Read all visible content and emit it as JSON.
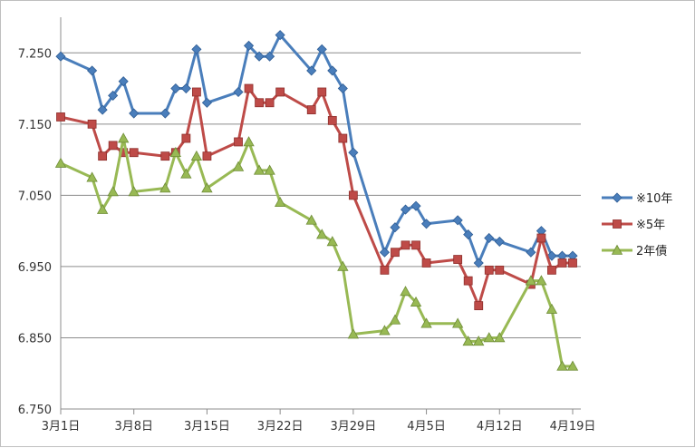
{
  "chart_data": {
    "type": "line",
    "title": "",
    "xlabel": "",
    "ylabel": "",
    "ylim": [
      6.75,
      7.3
    ],
    "y_ticks": [
      "7.250",
      "7.150",
      "7.050",
      "6.950",
      "6.850",
      "6.750"
    ],
    "x_ticks": [
      "3月1日",
      "3月8日",
      "3月15日",
      "3月22日",
      "3月29日",
      "4月5日",
      "4月12日",
      "4月19日"
    ],
    "grid": "horizontal",
    "legend_position": "right",
    "series": [
      {
        "name": "※10年",
        "color": "#4a7ebb",
        "marker": "diamond",
        "points": [
          [
            "2010-03-01",
            7.245
          ],
          [
            "2010-03-04",
            7.225
          ],
          [
            "2010-03-05",
            7.17
          ],
          [
            "2010-03-06",
            7.19
          ],
          [
            "2010-03-07",
            7.21
          ],
          [
            "2010-03-08",
            7.165
          ],
          [
            "2010-03-11",
            7.165
          ],
          [
            "2010-03-12",
            7.2
          ],
          [
            "2010-03-13",
            7.2
          ],
          [
            "2010-03-14",
            7.255
          ],
          [
            "2010-03-15",
            7.18
          ],
          [
            "2010-03-18",
            7.195
          ],
          [
            "2010-03-19",
            7.26
          ],
          [
            "2010-03-20",
            7.245
          ],
          [
            "2010-03-21",
            7.245
          ],
          [
            "2010-03-22",
            7.275
          ],
          [
            "2010-03-25",
            7.225
          ],
          [
            "2010-03-26",
            7.255
          ],
          [
            "2010-03-27",
            7.225
          ],
          [
            "2010-03-28",
            7.2
          ],
          [
            "2010-03-29",
            7.11
          ],
          [
            "2010-04-01",
            6.97
          ],
          [
            "2010-04-02",
            7.005
          ],
          [
            "2010-04-03",
            7.03
          ],
          [
            "2010-04-04",
            7.035
          ],
          [
            "2010-04-05",
            7.01
          ],
          [
            "2010-04-08",
            7.015
          ],
          [
            "2010-04-09",
            6.995
          ],
          [
            "2010-04-10",
            6.955
          ],
          [
            "2010-04-11",
            6.99
          ],
          [
            "2010-04-12",
            6.985
          ],
          [
            "2010-04-15",
            6.97
          ],
          [
            "2010-04-16",
            7.0
          ],
          [
            "2010-04-17",
            6.965
          ],
          [
            "2010-04-18",
            6.965
          ],
          [
            "2010-04-19",
            6.965
          ]
        ]
      },
      {
        "name": "※5年",
        "color": "#be4b48",
        "marker": "square",
        "points": [
          [
            "2010-03-01",
            7.16
          ],
          [
            "2010-03-04",
            7.15
          ],
          [
            "2010-03-05",
            7.105
          ],
          [
            "2010-03-06",
            7.12
          ],
          [
            "2010-03-07",
            7.11
          ],
          [
            "2010-03-08",
            7.11
          ],
          [
            "2010-03-11",
            7.105
          ],
          [
            "2010-03-12",
            7.11
          ],
          [
            "2010-03-13",
            7.13
          ],
          [
            "2010-03-14",
            7.195
          ],
          [
            "2010-03-15",
            7.105
          ],
          [
            "2010-03-18",
            7.125
          ],
          [
            "2010-03-19",
            7.2
          ],
          [
            "2010-03-20",
            7.18
          ],
          [
            "2010-03-21",
            7.18
          ],
          [
            "2010-03-22",
            7.195
          ],
          [
            "2010-03-25",
            7.17
          ],
          [
            "2010-03-26",
            7.195
          ],
          [
            "2010-03-27",
            7.155
          ],
          [
            "2010-03-28",
            7.13
          ],
          [
            "2010-03-29",
            7.05
          ],
          [
            "2010-04-01",
            6.945
          ],
          [
            "2010-04-02",
            6.97
          ],
          [
            "2010-04-03",
            6.98
          ],
          [
            "2010-04-04",
            6.98
          ],
          [
            "2010-04-05",
            6.955
          ],
          [
            "2010-04-08",
            6.96
          ],
          [
            "2010-04-09",
            6.93
          ],
          [
            "2010-04-10",
            6.895
          ],
          [
            "2010-04-11",
            6.945
          ],
          [
            "2010-04-12",
            6.945
          ],
          [
            "2010-04-15",
            6.925
          ],
          [
            "2010-04-16",
            6.99
          ],
          [
            "2010-04-17",
            6.945
          ],
          [
            "2010-04-18",
            6.955
          ],
          [
            "2010-04-19",
            6.955
          ]
        ]
      },
      {
        "name": "2年債",
        "color": "#98b954",
        "marker": "triangle",
        "points": [
          [
            "2010-03-01",
            7.095
          ],
          [
            "2010-03-04",
            7.075
          ],
          [
            "2010-03-05",
            7.03
          ],
          [
            "2010-03-06",
            7.055
          ],
          [
            "2010-03-07",
            7.13
          ],
          [
            "2010-03-08",
            7.055
          ],
          [
            "2010-03-11",
            7.06
          ],
          [
            "2010-03-12",
            7.11
          ],
          [
            "2010-03-13",
            7.08
          ],
          [
            "2010-03-14",
            7.105
          ],
          [
            "2010-03-15",
            7.06
          ],
          [
            "2010-03-18",
            7.09
          ],
          [
            "2010-03-19",
            7.125
          ],
          [
            "2010-03-20",
            7.085
          ],
          [
            "2010-03-21",
            7.085
          ],
          [
            "2010-03-22",
            7.04
          ],
          [
            "2010-03-25",
            7.015
          ],
          [
            "2010-03-26",
            6.995
          ],
          [
            "2010-03-27",
            6.985
          ],
          [
            "2010-03-28",
            6.95
          ],
          [
            "2010-03-29",
            6.855
          ],
          [
            "2010-04-01",
            6.86
          ],
          [
            "2010-04-02",
            6.875
          ],
          [
            "2010-04-03",
            6.915
          ],
          [
            "2010-04-04",
            6.9
          ],
          [
            "2010-04-05",
            6.87
          ],
          [
            "2010-04-08",
            6.87
          ],
          [
            "2010-04-09",
            6.845
          ],
          [
            "2010-04-10",
            6.845
          ],
          [
            "2010-04-11",
            6.85
          ],
          [
            "2010-04-12",
            6.85
          ],
          [
            "2010-04-15",
            6.93
          ],
          [
            "2010-04-16",
            6.93
          ],
          [
            "2010-04-17",
            6.89
          ],
          [
            "2010-04-18",
            6.81
          ],
          [
            "2010-04-19",
            6.81
          ]
        ]
      }
    ]
  }
}
